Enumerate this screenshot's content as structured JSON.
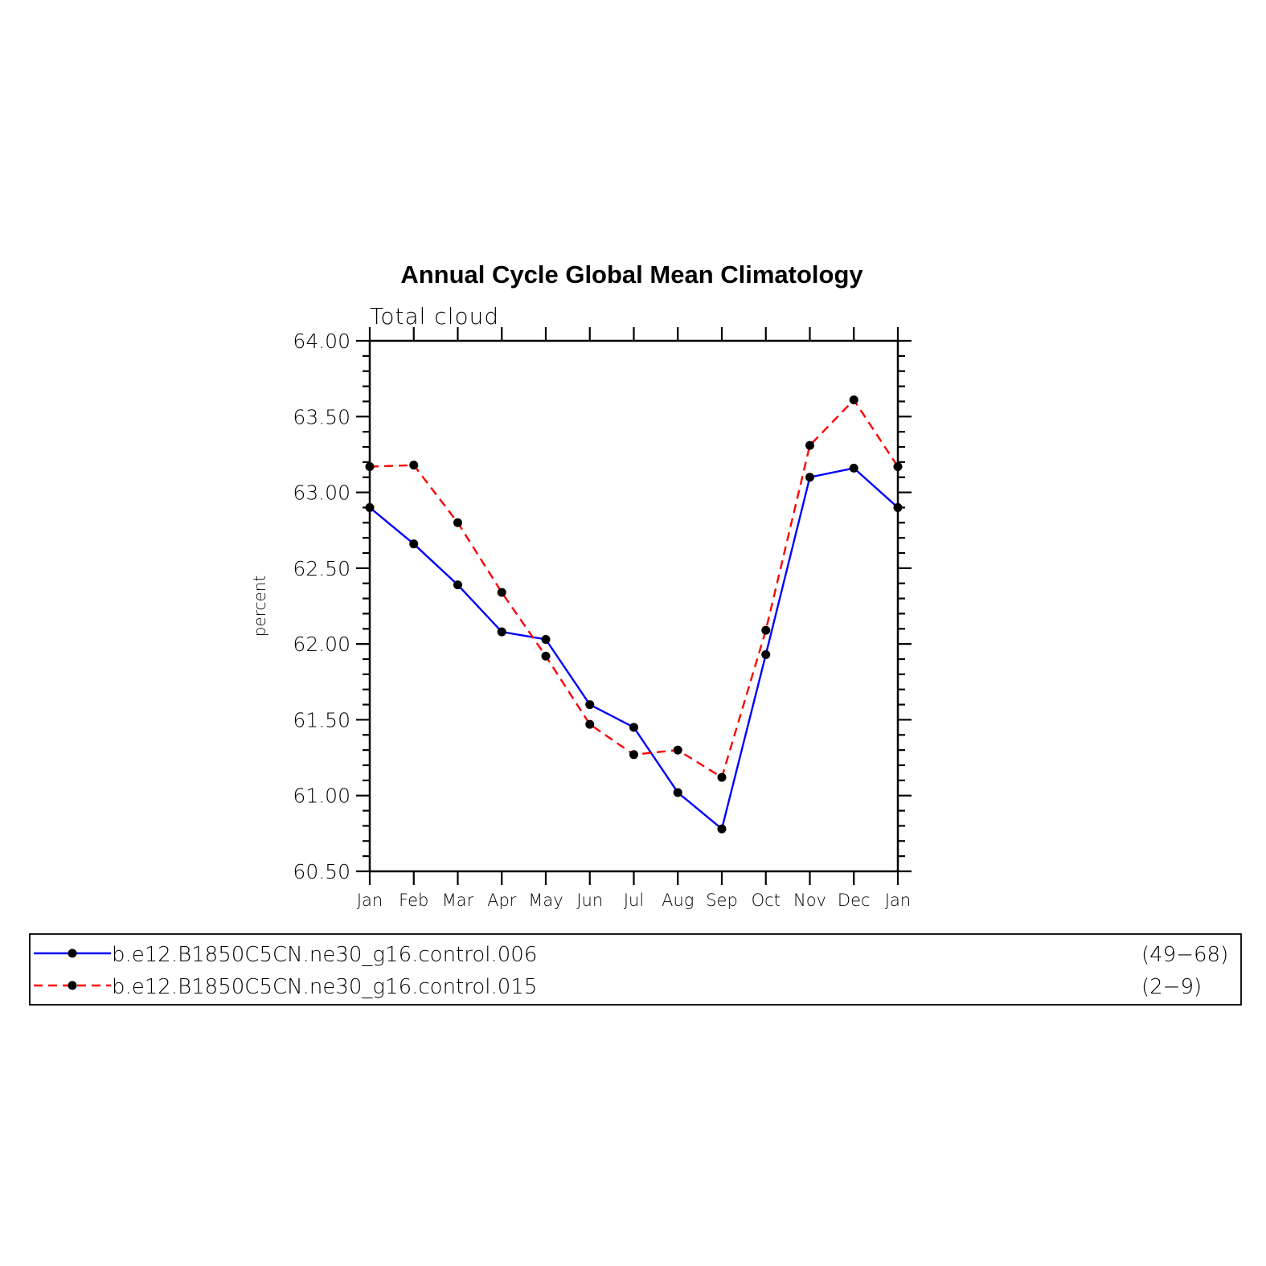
{
  "chart_data": {
    "type": "line",
    "title": "Annual Cycle Global Mean Climatology",
    "subtitle": "Total cloud",
    "xlabel": "",
    "ylabel": "percent",
    "categories": [
      "Jan",
      "Feb",
      "Mar",
      "Apr",
      "May",
      "Jun",
      "Jul",
      "Aug",
      "Sep",
      "Oct",
      "Nov",
      "Dec",
      "Jan"
    ],
    "ylim": [
      60.5,
      64.0
    ],
    "yticks": [
      "64.00",
      "63.50",
      "63.00",
      "62.50",
      "62.00",
      "61.50",
      "61.00",
      "60.50"
    ],
    "grid": false,
    "legend_position": "bottom",
    "series": [
      {
        "name": "b.e12.B1850C5CN.ne30_g16.control.006",
        "range": "(49−68)",
        "color": "#0000ff",
        "line_style": "solid",
        "values": [
          62.9,
          62.66,
          62.39,
          62.08,
          62.03,
          61.6,
          61.45,
          61.02,
          60.78,
          61.93,
          63.1,
          63.16,
          62.9
        ]
      },
      {
        "name": "b.e12.B1850C5CN.ne30_g16.control.015",
        "range": "(2−9)",
        "color": "#ff0000",
        "line_style": "dashed",
        "values": [
          63.17,
          63.18,
          62.8,
          62.34,
          61.92,
          61.47,
          61.27,
          61.3,
          61.12,
          62.09,
          63.31,
          63.61,
          63.17
        ]
      }
    ]
  }
}
